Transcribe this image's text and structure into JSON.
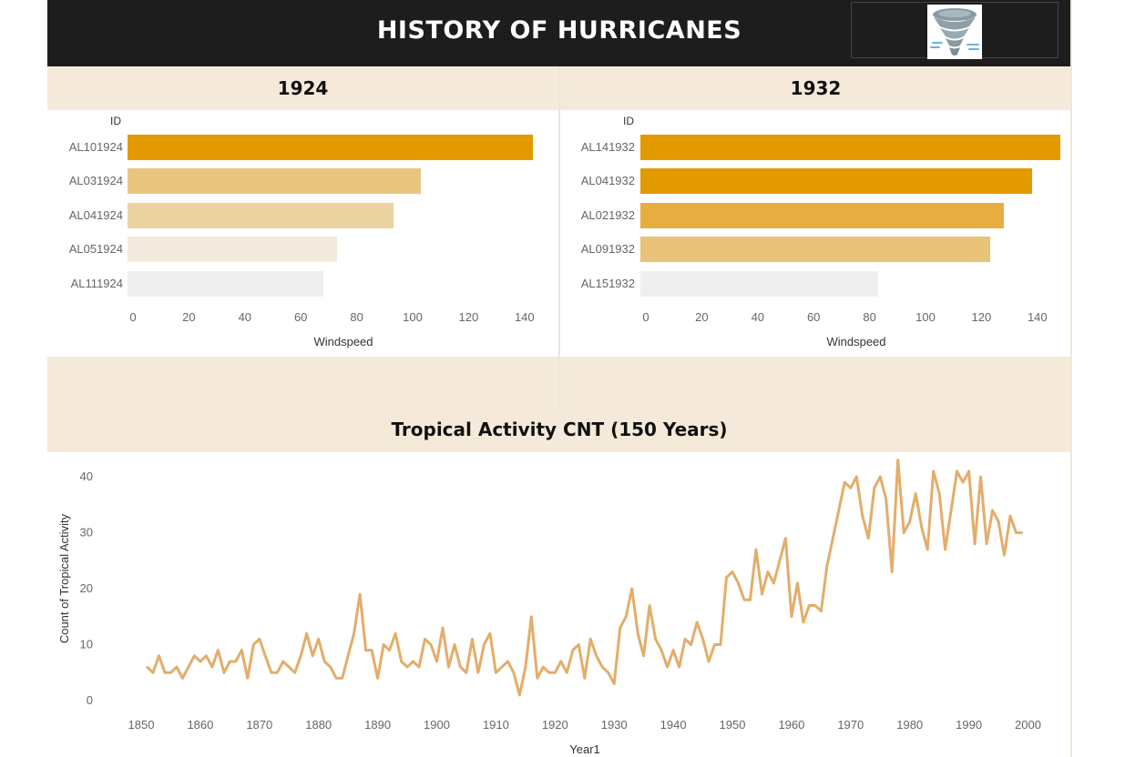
{
  "header": {
    "title": "HISTORY OF HURRICANES",
    "logo_icon": "tornado-icon"
  },
  "colors": {
    "header_bg": "#1d1d1d",
    "band": "#f5ead9",
    "line": "#e3ad6b"
  },
  "chart_data": [
    {
      "type": "bar",
      "title": "1924",
      "row_header": "ID",
      "xlabel": "Windspeed",
      "xlim": [
        0,
        150
      ],
      "xticks": [
        0,
        20,
        40,
        60,
        80,
        100,
        120,
        140
      ],
      "categories": [
        "AL101924",
        "AL031924",
        "AL041924",
        "AL051924",
        "AL111924"
      ],
      "values": [
        145,
        105,
        95,
        75,
        70
      ],
      "colors": [
        "#e29a00",
        "#e9c680",
        "#ecd4a2",
        "#f1eadd",
        "#efefef"
      ]
    },
    {
      "type": "bar",
      "title": "1932",
      "row_header": "ID",
      "xlabel": "Windspeed",
      "xlim": [
        0,
        150
      ],
      "xticks": [
        0,
        20,
        40,
        60,
        80,
        100,
        120,
        140
      ],
      "categories": [
        "AL141932",
        "AL041932",
        "AL021932",
        "AL091932",
        "AL151932"
      ],
      "values": [
        150,
        140,
        130,
        125,
        85
      ],
      "colors": [
        "#e29a00",
        "#e29a00",
        "#e6ae40",
        "#e8c378",
        "#efefef"
      ]
    },
    {
      "type": "line",
      "title": "Tropical Activity CNT (150 Years)",
      "xlabel": "Year1",
      "ylabel": "Count of Tropical Activity",
      "xlim": [
        1845,
        2005
      ],
      "ylim": [
        0,
        44
      ],
      "xticks": [
        1850,
        1860,
        1870,
        1880,
        1890,
        1900,
        1910,
        1920,
        1930,
        1940,
        1950,
        1960,
        1970,
        1980,
        1990,
        2000
      ],
      "yticks": [
        0,
        10,
        20,
        30,
        40
      ],
      "x": [
        1851,
        1852,
        1853,
        1854,
        1855,
        1856,
        1857,
        1858,
        1859,
        1860,
        1861,
        1862,
        1863,
        1864,
        1865,
        1866,
        1867,
        1868,
        1869,
        1870,
        1871,
        1872,
        1873,
        1874,
        1875,
        1876,
        1877,
        1878,
        1879,
        1880,
        1881,
        1882,
        1883,
        1884,
        1885,
        1886,
        1887,
        1888,
        1889,
        1890,
        1891,
        1892,
        1893,
        1894,
        1895,
        1896,
        1897,
        1898,
        1899,
        1900,
        1901,
        1902,
        1903,
        1904,
        1905,
        1906,
        1907,
        1908,
        1909,
        1910,
        1911,
        1912,
        1913,
        1914,
        1915,
        1916,
        1917,
        1918,
        1919,
        1920,
        1921,
        1922,
        1923,
        1924,
        1925,
        1926,
        1927,
        1928,
        1929,
        1930,
        1931,
        1932,
        1933,
        1934,
        1935,
        1936,
        1937,
        1938,
        1939,
        1940,
        1941,
        1942,
        1943,
        1944,
        1945,
        1946,
        1947,
        1948,
        1949,
        1950,
        1951,
        1952,
        1953,
        1954,
        1955,
        1956,
        1957,
        1958,
        1959,
        1960,
        1961,
        1962,
        1963,
        1964,
        1965,
        1966,
        1967,
        1968,
        1969,
        1970,
        1971,
        1972,
        1973,
        1974,
        1975,
        1976,
        1977,
        1978,
        1979,
        1980,
        1981,
        1982,
        1983,
        1984,
        1985,
        1986,
        1987,
        1988,
        1989,
        1990,
        1991,
        1992,
        1993,
        1994,
        1995,
        1996,
        1997,
        1998,
        1999
      ],
      "y": [
        6,
        5,
        8,
        5,
        5,
        6,
        4,
        6,
        8,
        7,
        8,
        6,
        9,
        5,
        7,
        7,
        9,
        4,
        10,
        11,
        8,
        5,
        5,
        7,
        6,
        5,
        8,
        12,
        8,
        11,
        7,
        6,
        4,
        4,
        8,
        12,
        19,
        9,
        9,
        4,
        10,
        9,
        12,
        7,
        6,
        7,
        6,
        11,
        10,
        7,
        13,
        6,
        10,
        6,
        5,
        11,
        5,
        10,
        12,
        5,
        6,
        7,
        5,
        1,
        6,
        15,
        4,
        6,
        5,
        5,
        7,
        5,
        9,
        10,
        4,
        11,
        8,
        6,
        5,
        3,
        13,
        15,
        20,
        12,
        8,
        17,
        11,
        9,
        6,
        9,
        6,
        11,
        10,
        14,
        11,
        7,
        10,
        10,
        22,
        23,
        21,
        18,
        18,
        27,
        19,
        23,
        21,
        25,
        29,
        15,
        21,
        14,
        17,
        17,
        16,
        24,
        29,
        34,
        39,
        38,
        40,
        33,
        29,
        38,
        40,
        36,
        23,
        43,
        30,
        32,
        37,
        31,
        27,
        41,
        37,
        27,
        34,
        41,
        39,
        41,
        28,
        40,
        28,
        34,
        32,
        26,
        33,
        30,
        30
      ]
    }
  ]
}
